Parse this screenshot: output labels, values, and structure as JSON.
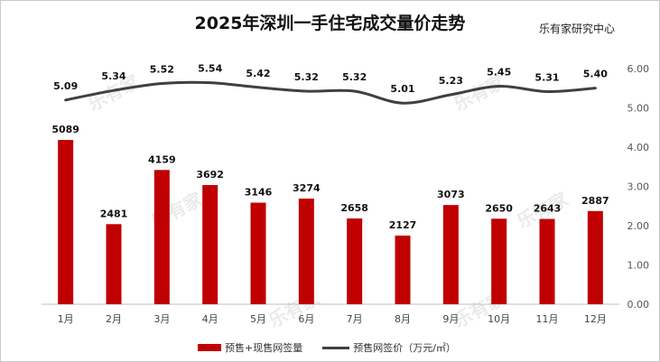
{
  "title": "2025年深圳一手住宅成交量价走势",
  "source": "乐有家研究中心",
  "watermark": "乐有家",
  "chart_data": {
    "type": "bar",
    "title": "2025年深圳一手住宅成交量价走势",
    "categories": [
      "1月",
      "2月",
      "3月",
      "4月",
      "5月",
      "6月",
      "7月",
      "8月",
      "9月",
      "10月",
      "11月",
      "12月"
    ],
    "series": [
      {
        "name": "预售+现售网签量",
        "type": "bar",
        "color": "#c00000",
        "values": [
          5089,
          2481,
          4159,
          3692,
          3146,
          3274,
          2658,
          2127,
          3073,
          2650,
          2643,
          2887
        ]
      },
      {
        "name": "预售网签价（万元/㎡）",
        "type": "line",
        "color": "#404040",
        "values": [
          5.09,
          5.34,
          5.52,
          5.54,
          5.42,
          5.32,
          5.32,
          5.01,
          5.23,
          5.45,
          5.31,
          5.4
        ]
      }
    ],
    "right_axis": {
      "min": 0,
      "max": 6,
      "ticks": [
        "0.00",
        "1.00",
        "2.00",
        "3.00",
        "4.00",
        "5.00",
        "6.00"
      ]
    },
    "bar_axis_max": 7300,
    "line_axis": {
      "min": 4.85,
      "max": 5.65
    },
    "legend_position": "bottom"
  }
}
